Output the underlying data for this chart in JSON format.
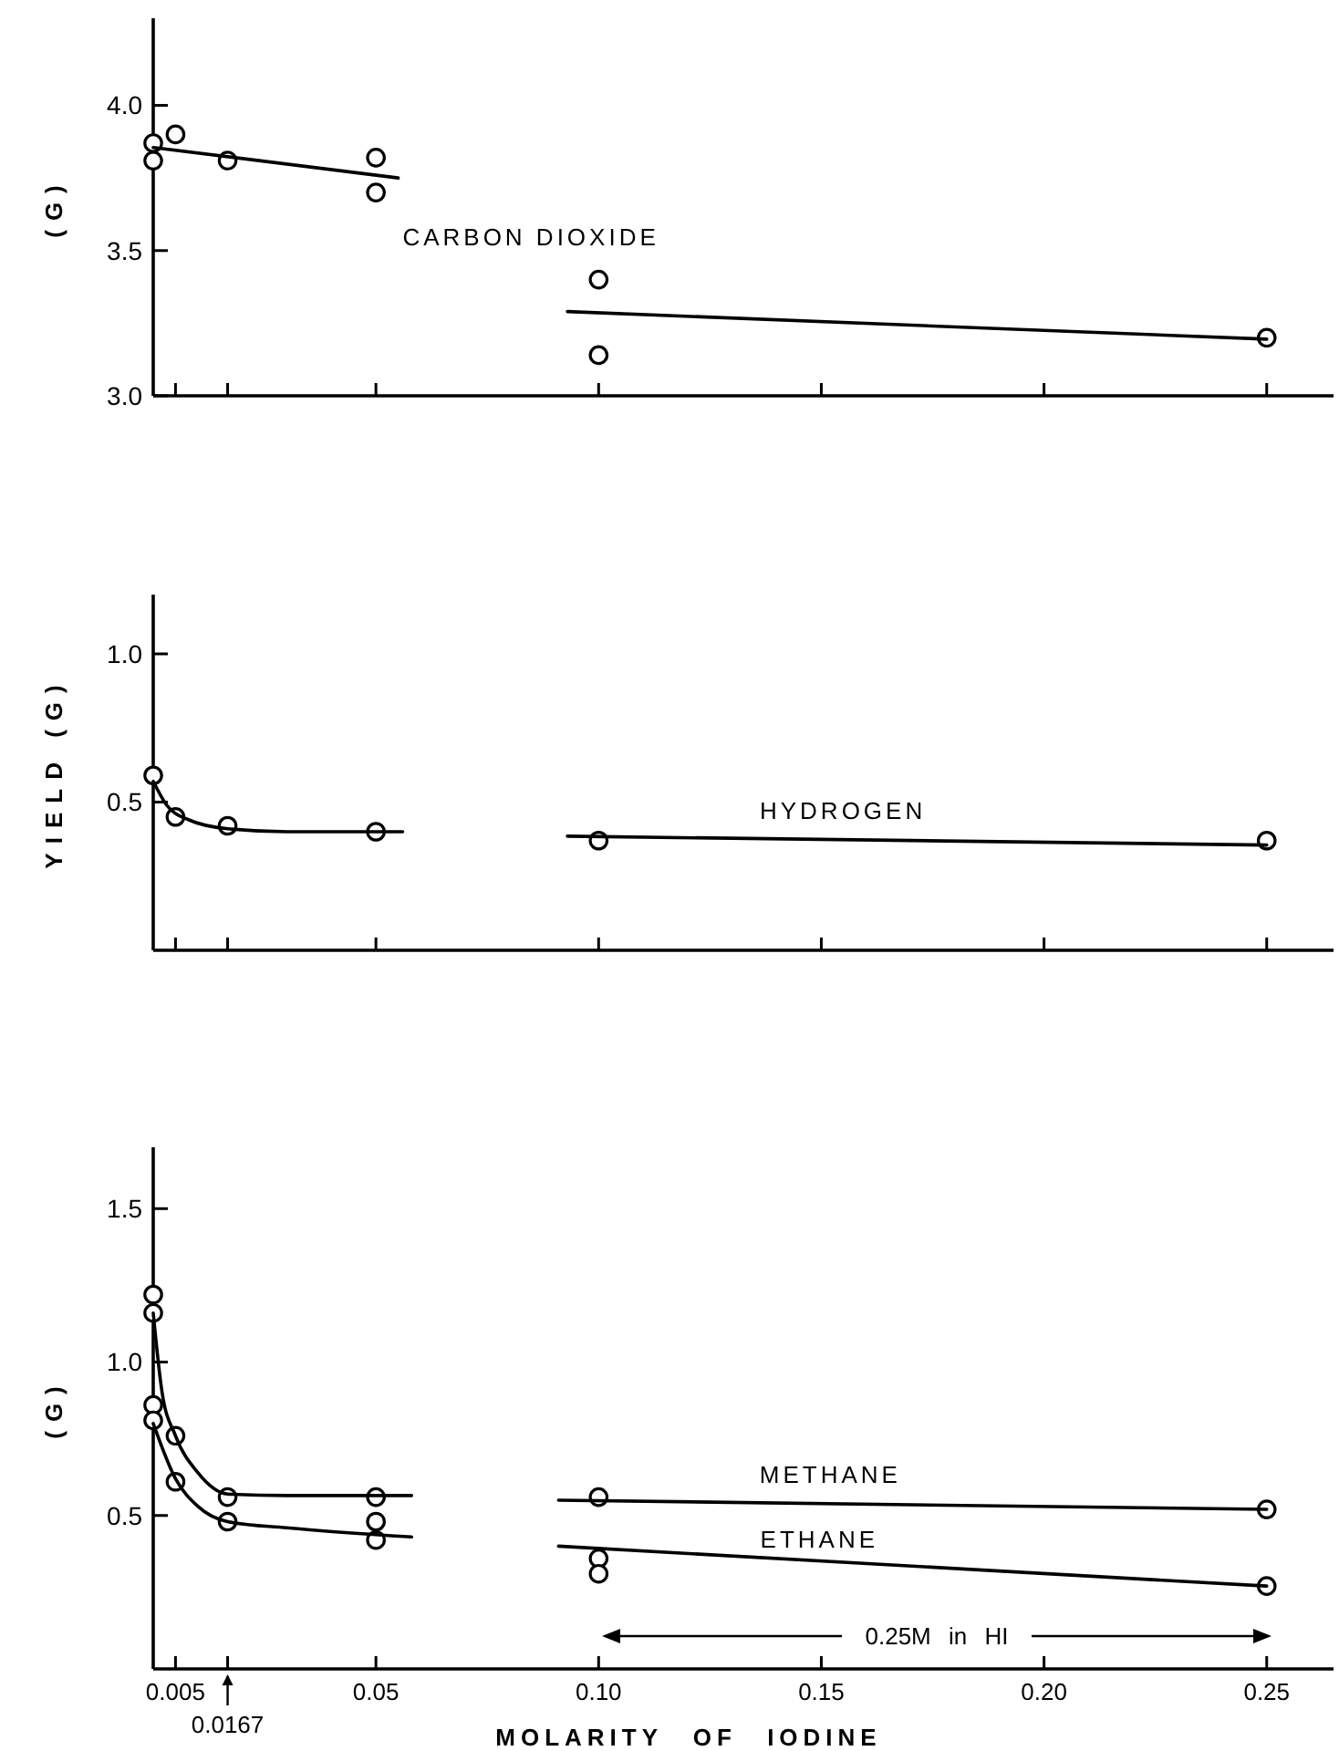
{
  "chart_data": [
    {
      "type": "scatter",
      "ylabel": "(G)",
      "xlim": [
        0,
        0.265
      ],
      "ylim": [
        3.0,
        4.3
      ],
      "yticks": [
        {
          "value": 3.0,
          "label": "3.0"
        },
        3.5,
        {
          "value": 4.0,
          "label": "4.0"
        }
      ],
      "xticks": [
        {
          "value": 0.005,
          "label": null
        },
        {
          "value": 0.0167,
          "label": null
        },
        {
          "value": 0.05,
          "label": null
        },
        {
          "value": 0.1,
          "label": null
        },
        {
          "value": 0.15,
          "label": null
        },
        {
          "value": 0.2,
          "label": null
        },
        {
          "value": 0.25,
          "label": null
        }
      ],
      "tick_labels": "y",
      "series": [
        {
          "marker": "circle",
          "color": "#000000",
          "x": [
            0,
            0,
            0.005,
            0.0167,
            0.05,
            0.05,
            0.1,
            0.1,
            0.25
          ],
          "values": [
            3.87,
            3.81,
            3.9,
            3.81,
            3.82,
            3.7,
            3.4,
            3.14,
            3.2
          ]
        },
        {
          "type": "line",
          "marker": "none",
          "color": "#000000",
          "x": [
            0,
            0.055
          ],
          "values": [
            3.855,
            3.75
          ]
        },
        {
          "type": "line",
          "marker": "none",
          "color": "#000000",
          "name": "CARBON DIOXIDE",
          "x": [
            0.093,
            0.25
          ],
          "values": [
            3.29,
            3.195
          ]
        }
      ]
    },
    {
      "type": "scatter",
      "ylabel": "YIELD (G)",
      "xlim": [
        0,
        0.265
      ],
      "ylim": [
        0,
        1.2
      ],
      "yticks": [
        0.5,
        {
          "value": 1.0,
          "label": "1.0"
        }
      ],
      "xticks": [
        {
          "value": 0.005,
          "label": null
        },
        {
          "value": 0.0167,
          "label": null
        },
        {
          "value": 0.05,
          "label": null
        },
        {
          "value": 0.1,
          "label": null
        },
        {
          "value": 0.15,
          "label": null
        },
        {
          "value": 0.2,
          "label": null
        },
        {
          "value": 0.25,
          "label": null
        }
      ],
      "tick_labels": "y",
      "series": [
        {
          "marker": "circle",
          "color": "#000000",
          "x": [
            0,
            0.005,
            0.0167,
            0.05,
            0.1,
            0.25
          ],
          "values": [
            0.59,
            0.45,
            0.42,
            0.4,
            0.37,
            0.37
          ]
        },
        {
          "type": "line",
          "marker": "none",
          "color": "#000000",
          "x": [
            0,
            0.003,
            0.008,
            0.0167,
            0.03,
            0.056
          ],
          "values": [
            0.57,
            0.49,
            0.44,
            0.41,
            0.4,
            0.4
          ]
        },
        {
          "type": "line",
          "marker": "none",
          "color": "#000000",
          "name": "HYDROGEN",
          "x": [
            0.093,
            0.25
          ],
          "values": [
            0.385,
            0.355
          ]
        }
      ]
    },
    {
      "type": "scatter",
      "ylabel": "(G)",
      "xlabel": "MOLARITY OF IODINE",
      "xlim": [
        0,
        0.265
      ],
      "ylim": [
        0,
        1.7
      ],
      "yticks": [
        0.5,
        {
          "value": 1.0,
          "label": "1.0"
        },
        1.5
      ],
      "xticks": [
        0.005,
        {
          "value": 0.0167,
          "label": null
        },
        0.05,
        {
          "value": 0.1,
          "label": "0.10"
        },
        0.15,
        {
          "value": 0.2,
          "label": "0.20"
        },
        0.25
      ],
      "series": [
        {
          "marker": "circle",
          "color": "#000000",
          "x": [
            0,
            0,
            0,
            0,
            0.005,
            0.005,
            0.0167,
            0.0167,
            0.05,
            0.05,
            0.05,
            0.1,
            0.1,
            0.1,
            0.25,
            0.25
          ],
          "values": [
            1.22,
            1.16,
            0.86,
            0.81,
            0.76,
            0.61,
            0.56,
            0.48,
            0.56,
            0.48,
            0.42,
            0.56,
            0.36,
            0.31,
            0.52,
            0.27
          ]
        },
        {
          "type": "line",
          "marker": "none",
          "color": "#000000",
          "x": [
            0,
            0.002,
            0.005,
            0.01,
            0.0167,
            0.03,
            0.058
          ],
          "values": [
            1.16,
            0.9,
            0.76,
            0.64,
            0.57,
            0.565,
            0.565
          ]
        },
        {
          "type": "line",
          "marker": "none",
          "color": "#000000",
          "name": "METHANE",
          "x": [
            0.091,
            0.25
          ],
          "values": [
            0.55,
            0.52
          ]
        },
        {
          "type": "line",
          "marker": "none",
          "color": "#000000",
          "x": [
            0,
            0.005,
            0.01,
            0.0167,
            0.03,
            0.058
          ],
          "values": [
            0.8,
            0.62,
            0.53,
            0.48,
            0.46,
            0.43
          ]
        },
        {
          "type": "line",
          "marker": "none",
          "color": "#000000",
          "name": "ETHANE",
          "x": [
            0.091,
            0.25
          ],
          "values": [
            0.4,
            0.27
          ]
        }
      ],
      "annotations": [
        {
          "text": "0.0167",
          "x": 0.0167
        },
        "0.25M in HI"
      ]
    }
  ]
}
